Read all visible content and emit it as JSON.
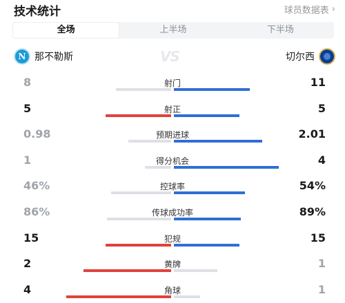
{
  "header": {
    "title": "技术统计",
    "link_label": "球员数据表",
    "link_icon": "chevron-right-icon"
  },
  "tabs": [
    {
      "label": "全场",
      "active": true
    },
    {
      "label": "上半场",
      "active": false
    },
    {
      "label": "下半场",
      "active": false
    }
  ],
  "teams": {
    "home": {
      "name": "那不勒斯",
      "badge_icon": "napoli-badge-icon"
    },
    "away": {
      "name": "切尔西",
      "badge_icon": "chelsea-badge-icon"
    },
    "vs_label": "VS"
  },
  "colors": {
    "home_bar": "#e0423b",
    "away_bar": "#2f6fd6",
    "track": "#dde0e5"
  },
  "stats": [
    {
      "label": "射门",
      "home": "8",
      "away": "11",
      "home_val": 8,
      "away_val": 11,
      "leader": "away"
    },
    {
      "label": "射正",
      "home": "5",
      "away": "5",
      "home_val": 5,
      "away_val": 5,
      "leader": "both"
    },
    {
      "label": "预期进球",
      "home": "0.98",
      "away": "2.01",
      "home_val": 0.98,
      "away_val": 2.01,
      "leader": "away"
    },
    {
      "label": "得分机会",
      "home": "1",
      "away": "4",
      "home_val": 1,
      "away_val": 4,
      "leader": "away"
    },
    {
      "label": "控球率",
      "home": "46%",
      "away": "54%",
      "home_val": 46,
      "away_val": 54,
      "leader": "away"
    },
    {
      "label": "传球成功率",
      "home": "86%",
      "away": "89%",
      "home_val": 86,
      "away_val": 89,
      "leader": "away"
    },
    {
      "label": "犯规",
      "home": "15",
      "away": "15",
      "home_val": 15,
      "away_val": 15,
      "leader": "both"
    },
    {
      "label": "黄牌",
      "home": "2",
      "away": "1",
      "home_val": 2,
      "away_val": 1,
      "leader": "home"
    },
    {
      "label": "角球",
      "home": "4",
      "away": "1",
      "home_val": 4,
      "away_val": 1,
      "leader": "home"
    }
  ]
}
